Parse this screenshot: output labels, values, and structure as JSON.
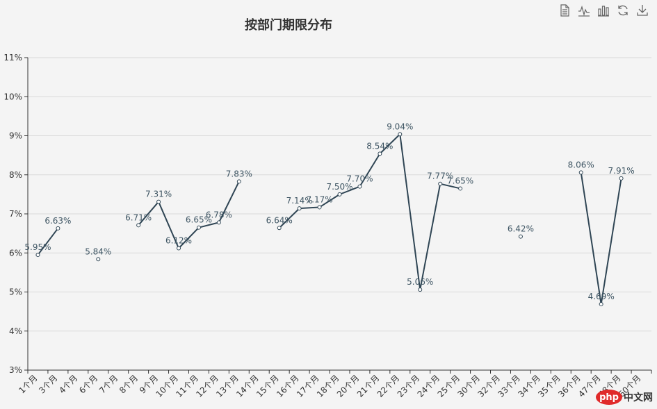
{
  "chart_data": {
    "type": "line",
    "title": "按部门期限分布",
    "categories": [
      "1个月",
      "3个月",
      "4个月",
      "6个月",
      "7个月",
      "8个月",
      "9个月",
      "10个月",
      "11个月",
      "12个月",
      "13个月",
      "14个月",
      "15个月",
      "16个月",
      "17个月",
      "18个月",
      "20个月",
      "21个月",
      "22个月",
      "23个月",
      "24个月",
      "25个月",
      "30个月",
      "32个月",
      "33个月",
      "34个月",
      "35个月",
      "36个月",
      "47个月",
      "48个月",
      "60个月"
    ],
    "series": [
      {
        "values": [
          5.95,
          6.63,
          null,
          5.84,
          null,
          6.71,
          7.31,
          6.12,
          6.65,
          6.78,
          7.83,
          null,
          6.64,
          7.14,
          7.17,
          7.5,
          7.7,
          8.54,
          9.04,
          5.06,
          7.77,
          7.65,
          null,
          null,
          6.42,
          null,
          null,
          8.06,
          4.69,
          7.91,
          null
        ],
        "color": "#2f4554"
      }
    ],
    "ylim": [
      3,
      11
    ],
    "yticks": [
      3,
      4,
      5,
      6,
      7,
      8,
      9,
      10,
      11
    ],
    "yformat": "{v}%",
    "grid": true,
    "xlabel_rotation": -45
  },
  "toolbox": {
    "icons": [
      "data-view-icon",
      "line-chart-icon",
      "bar-chart-icon",
      "restore-icon",
      "download-icon"
    ]
  },
  "watermark": {
    "logo": "php",
    "text": "中文网"
  }
}
